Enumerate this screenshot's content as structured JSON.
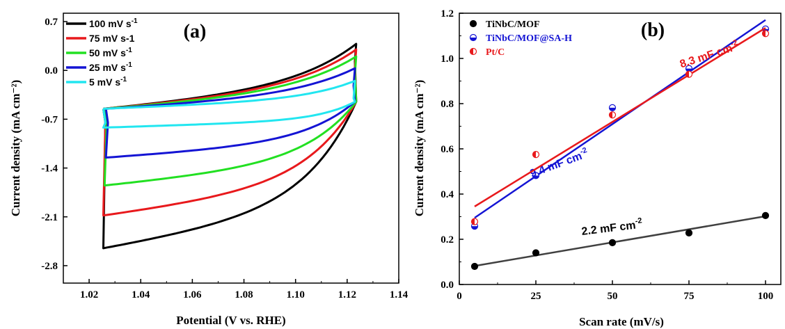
{
  "chart_data": [
    {
      "panel_label": "(a)",
      "type": "line",
      "xlabel": "Potential (V vs. RHE)",
      "ylabel": "Current density (mA cm⁻²)",
      "xlim": [
        1.01,
        1.14
      ],
      "ylim": [
        -3.05,
        0.82
      ],
      "xticks": [
        "1.02",
        "1.04",
        "1.06",
        "1.08",
        "1.10",
        "1.12",
        "1.14"
      ],
      "yticks": [
        "0.7",
        "0.0",
        "-0.7",
        "-1.4",
        "-2.1",
        "-2.8"
      ],
      "legend_position": "top-left",
      "series": [
        {
          "name": "100 mV s-1",
          "sup": "-1",
          "color": "#000000",
          "x_start": 1.0255,
          "x_end": 1.1235,
          "top_start": -0.55,
          "top_end": 0.38,
          "bottom_start": -2.55,
          "bottom_end": -0.45,
          "top_k": 4,
          "bot_k": 5
        },
        {
          "name": "75 mV s-1",
          "sup": "",
          "color": "#e8191c",
          "x_start": 1.0255,
          "x_end": 1.1235,
          "top_start": -0.55,
          "top_end": 0.3,
          "bottom_start": -2.08,
          "bottom_end": -0.45,
          "top_k": 4,
          "bot_k": 5
        },
        {
          "name": "50 mV s-1",
          "sup": "-1",
          "color": "#22e022",
          "x_start": 1.026,
          "x_end": 1.1235,
          "top_start": -0.55,
          "top_end": 0.2,
          "bottom_start": -1.65,
          "bottom_end": -0.45,
          "top_k": 4,
          "bot_k": 5
        },
        {
          "name": "25 mV s-1",
          "sup": "-1",
          "color": "#1414d4",
          "x_start": 1.0265,
          "x_end": 1.123,
          "top_start": -0.55,
          "top_end": 0.03,
          "bottom_start": -1.25,
          "bottom_end": -0.45,
          "top_k": 4,
          "bot_k": 5
        },
        {
          "name": "5 mV s-1",
          "sup": "-1",
          "color": "#22e6f0",
          "x_start": 1.0255,
          "x_end": 1.123,
          "top_start": -0.55,
          "top_end": -0.15,
          "bottom_start": -0.82,
          "bottom_end": -0.45,
          "top_k": 5,
          "bot_k": 7
        }
      ]
    },
    {
      "panel_label": "(b)",
      "type": "scatter",
      "xlabel": "Scan rate (mV/s)",
      "ylabel": "Current density (mA cm⁻²)",
      "xlim": [
        0,
        105
      ],
      "ylim": [
        0.0,
        1.2
      ],
      "xticks": [
        "0",
        "25",
        "50",
        "75",
        "100"
      ],
      "yticks": [
        "0.0",
        "0.2",
        "0.4",
        "0.6",
        "0.8",
        "1.0",
        "1.2"
      ],
      "legend_position": "top-left",
      "series": [
        {
          "name": "TiNbC/MOF",
          "color": "#000000",
          "fit_color": "#404040",
          "x": [
            5,
            25,
            50,
            75,
            100
          ],
          "y": [
            0.08,
            0.14,
            0.185,
            0.228,
            0.305
          ],
          "fit": [
            0.082,
            0.302
          ],
          "annotation": "2.2 mF cm",
          "ann_x": 50,
          "ann_y": 0.235
        },
        {
          "name": "TiNbC/MOF@SA-H",
          "color": "#1414d4",
          "fit_color": "#1414d4",
          "x": [
            5,
            25,
            50,
            75,
            100
          ],
          "y": [
            0.258,
            0.482,
            0.782,
            0.955,
            1.13
          ],
          "fit": [
            0.295,
            1.17
          ],
          "annotation": "9.4 mF cm",
          "ann_x": 33,
          "ann_y": 0.52
        },
        {
          "name": "Pt/C",
          "color": "#e8191c",
          "fit_color": "#e8191c",
          "x": [
            5,
            25,
            50,
            75,
            100
          ],
          "y": [
            0.278,
            0.575,
            0.75,
            0.93,
            1.11
          ],
          "fit": [
            0.345,
            1.135
          ],
          "annotation": "8.3 mF cm",
          "ann_x": 82,
          "ann_y": 1.0
        }
      ]
    }
  ]
}
